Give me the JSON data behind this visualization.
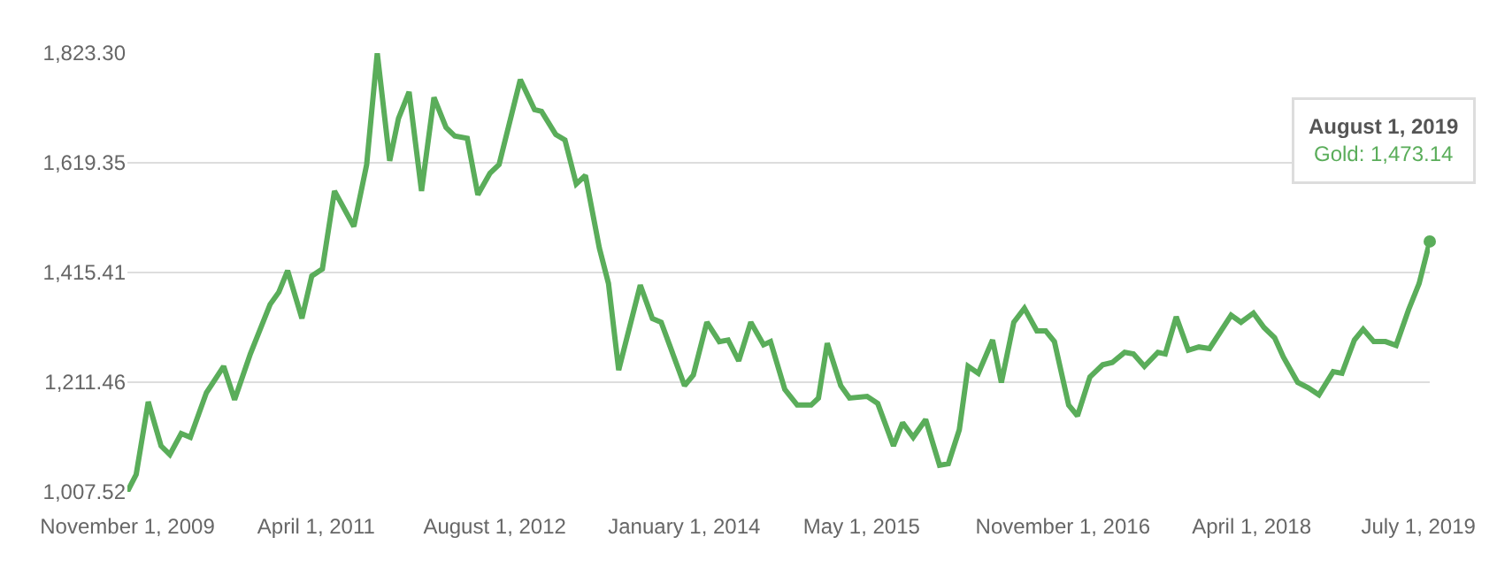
{
  "chart_data": {
    "type": "line",
    "x": [
      "2009-11-01",
      "2009-11-25",
      "2009-12-28",
      "2010-02-01",
      "2010-02-25",
      "2010-03-28",
      "2010-04-22",
      "2010-06-05",
      "2010-07-22",
      "2010-08-21",
      "2010-10-03",
      "2010-11-26",
      "2010-12-20",
      "2011-01-13",
      "2011-02-21",
      "2011-03-20",
      "2011-04-18",
      "2011-05-21",
      "2011-07-13",
      "2011-08-17",
      "2011-09-15",
      "2011-10-19",
      "2011-11-12",
      "2011-12-11",
      "2012-01-14",
      "2012-02-17",
      "2012-03-21",
      "2012-04-14",
      "2012-05-18",
      "2012-06-16",
      "2012-07-19",
      "2012-08-13",
      "2012-10-10",
      "2012-11-18",
      "2012-12-07",
      "2013-01-15",
      "2013-02-09",
      "2013-03-12",
      "2013-04-06",
      "2013-05-14",
      "2013-06-08",
      "2013-07-06",
      "2013-09-03",
      "2013-10-06",
      "2013-10-30",
      "2014-01-02",
      "2014-01-26",
      "2014-03-04",
      "2014-04-07",
      "2014-05-01",
      "2014-05-30",
      "2014-07-02",
      "2014-08-06",
      "2014-08-25",
      "2014-10-03",
      "2014-11-06",
      "2014-12-14",
      "2015-01-03",
      "2015-01-27",
      "2015-03-05",
      "2015-03-29",
      "2015-05-16",
      "2015-06-14",
      "2015-07-27",
      "2015-08-21",
      "2015-09-19",
      "2015-10-23",
      "2015-11-30",
      "2015-12-24",
      "2016-01-23",
      "2016-02-16",
      "2016-03-15",
      "2016-04-23",
      "2016-05-17",
      "2016-06-20",
      "2016-07-19",
      "2016-08-22",
      "2016-09-15",
      "2016-10-09",
      "2016-11-17",
      "2016-12-11",
      "2017-01-14",
      "2017-02-18",
      "2017-03-16",
      "2017-04-19",
      "2017-05-13",
      "2017-06-12",
      "2017-07-19",
      "2017-08-08",
      "2017-09-07",
      "2017-10-10",
      "2017-11-08",
      "2017-12-07",
      "2018-02-04",
      "2018-03-03",
      "2018-04-06",
      "2018-05-05",
      "2018-06-03",
      "2018-06-27",
      "2018-08-05",
      "2018-09-03",
      "2018-10-02",
      "2018-11-10",
      "2018-12-04",
      "2019-01-07",
      "2019-01-31",
      "2019-03-01",
      "2019-04-02",
      "2019-05-01",
      "2019-06-04",
      "2019-07-03",
      "2019-08-01"
    ],
    "series": [
      {
        "color": "#5aad5a",
        "values": [
          1008,
          1040,
          1175,
          1093,
          1077,
          1116,
          1109,
          1192,
          1241,
          1179,
          1264,
          1356,
          1379,
          1419,
          1330,
          1409,
          1422,
          1567,
          1501,
          1616,
          1823,
          1623,
          1702,
          1751,
          1567,
          1741,
          1685,
          1669,
          1665,
          1560,
          1600,
          1616,
          1774,
          1718,
          1715,
          1672,
          1662,
          1580,
          1596,
          1461,
          1395,
          1234,
          1392,
          1330,
          1323,
          1205,
          1225,
          1323,
          1287,
          1290,
          1251,
          1323,
          1281,
          1287,
          1198,
          1169,
          1169,
          1182,
          1284,
          1205,
          1182,
          1185,
          1172,
          1093,
          1136,
          1109,
          1142,
          1057,
          1060,
          1123,
          1241,
          1228,
          1290,
          1211,
          1323,
          1349,
          1307,
          1307,
          1287,
          1169,
          1149,
          1221,
          1244,
          1248,
          1267,
          1264,
          1241,
          1267,
          1264,
          1333,
          1271,
          1277,
          1274,
          1336,
          1323,
          1340,
          1313,
          1294,
          1258,
          1211,
          1201,
          1188,
          1231,
          1228,
          1290,
          1310,
          1287,
          1287,
          1280,
          1346,
          1395,
          1473.14
        ]
      }
    ],
    "xlim": [
      "2009-11-01",
      "2019-08-01"
    ],
    "xticks": [
      {
        "value": "2009-11-01",
        "label": "November 1, 2009"
      },
      {
        "value": "2011-04-01",
        "label": "April 1, 2011"
      },
      {
        "value": "2012-08-01",
        "label": "August 1, 2012"
      },
      {
        "value": "2014-01-01",
        "label": "January 1, 2014"
      },
      {
        "value": "2015-05-01",
        "label": "May 1, 2015"
      },
      {
        "value": "2016-11-01",
        "label": "November 1, 2016"
      },
      {
        "value": "2018-04-01",
        "label": "April 1, 2018"
      },
      {
        "value": "2019-07-01",
        "label": "July 1, 2019"
      }
    ],
    "ylim": [
      1007.52,
      1823.3
    ],
    "yticks": [
      {
        "value": 1007.52,
        "label": "1,007.52"
      },
      {
        "value": 1211.46,
        "label": "1,211.46"
      },
      {
        "value": 1415.41,
        "label": "1,415.41"
      },
      {
        "value": 1619.35,
        "label": "1,619.35"
      },
      {
        "value": 1823.3,
        "label": "1,823.30"
      }
    ],
    "grid": "y",
    "legend": false,
    "annotations": [
      "August 1, 2019\nGold: 1,473.14"
    ]
  }
}
